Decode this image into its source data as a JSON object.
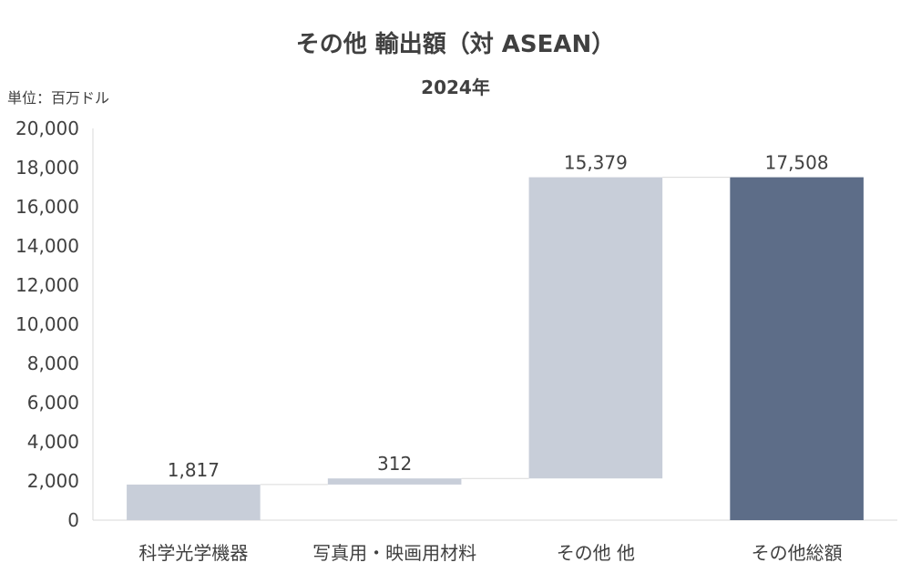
{
  "title": "その他 輸出額（対 ASEAN）",
  "subtitle": "2024年",
  "unit_label": "単位：百万ドル",
  "colors": {
    "increase": "#c8ced9",
    "total": "#5d6d88",
    "axis": "#d9d9d9",
    "text": "#404040"
  },
  "chart_data": {
    "type": "bar",
    "subtype": "waterfall",
    "categories": [
      "科学光学機器",
      "写真用・映画用材料",
      "その他 他",
      "その他総額"
    ],
    "values": [
      1817,
      312,
      15379,
      17508
    ],
    "value_labels": [
      "1,817",
      "312",
      "15,379",
      "17,508"
    ],
    "is_total": [
      false,
      false,
      false,
      true
    ],
    "ylim": [
      0,
      20000
    ],
    "yticks": [
      0,
      2000,
      4000,
      6000,
      8000,
      10000,
      12000,
      14000,
      16000,
      18000,
      20000
    ],
    "ytick_labels": [
      "0",
      "2,000",
      "4,000",
      "6,000",
      "8,000",
      "10,000",
      "12,000",
      "14,000",
      "16,000",
      "18,000",
      "20,000"
    ],
    "grid": false,
    "legend": "none"
  }
}
